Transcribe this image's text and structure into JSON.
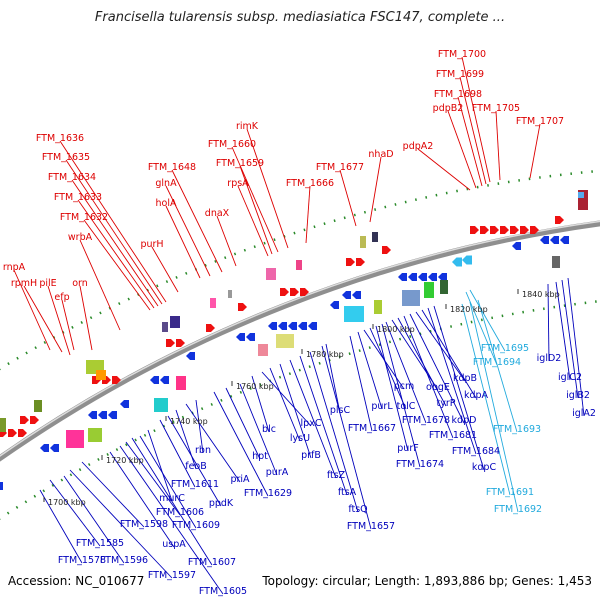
{
  "title": "Francisella tularensis subsp. mediasiatica FSC147, complete ...",
  "footer": {
    "accession": "Accession: NC_010677",
    "stats": "Topology: circular; Length: 1,893,886 bp; Genes: 1,453"
  },
  "colors": {
    "forward": "#ee1111",
    "reverse": "#1133dd",
    "rna": "#33bbee",
    "backbone": "#9a9a9a",
    "tick_mark": "#2a7a2a",
    "label_forward": "#dd0000",
    "label_reverse": "#0000bb",
    "label_rna": "#22aadd"
  },
  "ticks": [
    {
      "label": "1700 kbp",
      "kbp": 1700
    },
    {
      "label": "1720 kbp",
      "kbp": 1720
    },
    {
      "label": "1740 kbp",
      "kbp": 1740
    },
    {
      "label": "1760 kbp",
      "kbp": 1760
    },
    {
      "label": "1780 kbp",
      "kbp": 1780
    },
    {
      "label": "1800 kbp",
      "kbp": 1800
    },
    {
      "label": "1820 kbp",
      "kbp": 1820
    },
    {
      "label": "1840 kbp",
      "kbp": 1840
    }
  ],
  "forward_genes": [
    {
      "label": "rnpA"
    },
    {
      "label": "rpmH"
    },
    {
      "label": "pilE"
    },
    {
      "label": "efp"
    },
    {
      "label": "orn"
    },
    {
      "label": "wrbA"
    },
    {
      "label": "FTM_1632"
    },
    {
      "label": "FTM_1633"
    },
    {
      "label": "FTM_1634"
    },
    {
      "label": "FTM_1635"
    },
    {
      "label": "FTM_1636"
    },
    {
      "label": "purH"
    },
    {
      "label": "holA"
    },
    {
      "label": "glnA"
    },
    {
      "label": "FTM_1648"
    },
    {
      "label": "dnaX"
    },
    {
      "label": "rpsA"
    },
    {
      "label": "FTM_1659"
    },
    {
      "label": "FTM_1660"
    },
    {
      "label": "rimK"
    },
    {
      "label": "FTM_1666"
    },
    {
      "label": "FTM_1677"
    },
    {
      "label": "nhaD"
    },
    {
      "label": "pdpA2"
    },
    {
      "label": "pdpB2"
    },
    {
      "label": "FTM_1698"
    },
    {
      "label": "FTM_1699"
    },
    {
      "label": "FTM_1700"
    },
    {
      "label": "FTM_1705"
    },
    {
      "label": "FTM_1707"
    }
  ],
  "reverse_genes": [
    {
      "label": "FTM_1578"
    },
    {
      "label": "FTM_1585"
    },
    {
      "label": "FTM_1596"
    },
    {
      "label": "FTM_1597"
    },
    {
      "label": "FTM_1598"
    },
    {
      "label": "uspA"
    },
    {
      "label": "FTM_1605"
    },
    {
      "label": "FTM_1606"
    },
    {
      "label": "FTM_1607"
    },
    {
      "label": "FTM_1609"
    },
    {
      "label": "murC"
    },
    {
      "label": "FTM_1611"
    },
    {
      "label": "ppdK"
    },
    {
      "label": "feoB"
    },
    {
      "label": "priA"
    },
    {
      "label": "rbn"
    },
    {
      "label": "FTM_1629"
    },
    {
      "label": "hpt"
    },
    {
      "label": "purA"
    },
    {
      "label": "blc"
    },
    {
      "label": "lpxC"
    },
    {
      "label": "lysU"
    },
    {
      "label": "prfB"
    },
    {
      "label": "ftsZ"
    },
    {
      "label": "ftsA"
    },
    {
      "label": "ftsQ"
    },
    {
      "label": "FTM_1657"
    },
    {
      "label": "plsC"
    },
    {
      "label": "FTM_1667"
    },
    {
      "label": "purL"
    },
    {
      "label": "pcm"
    },
    {
      "label": "tolC"
    },
    {
      "label": "purF"
    },
    {
      "label": "FTM_1674"
    },
    {
      "label": "FTM_1678"
    },
    {
      "label": "obgE"
    },
    {
      "label": "tyrP"
    },
    {
      "label": "FTM_1681"
    },
    {
      "label": "kdpD"
    },
    {
      "label": "kdpB"
    },
    {
      "label": "kdpA"
    },
    {
      "label": "FTM_1684"
    },
    {
      "label": "kdpC"
    },
    {
      "label": "iglD2"
    },
    {
      "label": "iglC2"
    },
    {
      "label": "iglB2"
    },
    {
      "label": "iglA2"
    }
  ],
  "rna_genes": [
    {
      "label": "FTM_1695"
    },
    {
      "label": "FTM_1694"
    },
    {
      "label": "FTM_1693"
    },
    {
      "label": "FTM_1691"
    },
    {
      "label": "FTM_1692"
    }
  ]
}
